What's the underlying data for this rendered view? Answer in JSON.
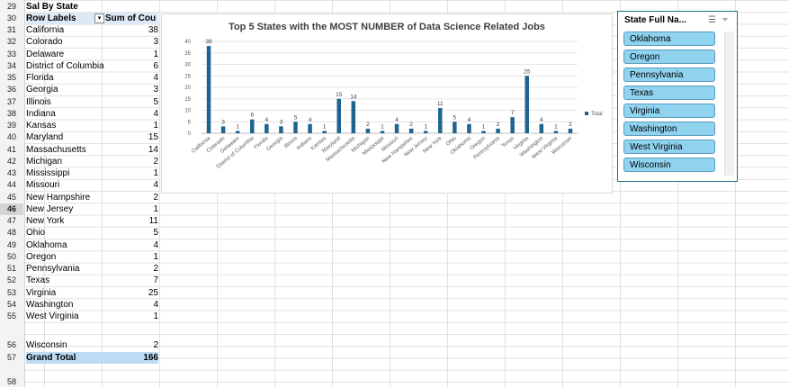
{
  "pivot": {
    "section_title": "Sal By State",
    "header": {
      "row_labels": "Row Labels",
      "sum_label": "Sum of Cou"
    },
    "rows": [
      {
        "state": "California",
        "count": "38"
      },
      {
        "state": "Colorado",
        "count": "3"
      },
      {
        "state": "Delaware",
        "count": "1"
      },
      {
        "state": "District of Columbia",
        "count": "6"
      },
      {
        "state": "Florida",
        "count": "4"
      },
      {
        "state": "Georgia",
        "count": "3"
      },
      {
        "state": "Illinois",
        "count": "5"
      },
      {
        "state": "Indiana",
        "count": "4"
      },
      {
        "state": "Kansas",
        "count": "1"
      },
      {
        "state": "Maryland",
        "count": "15"
      },
      {
        "state": "Massachusetts",
        "count": "14"
      },
      {
        "state": "Michigan",
        "count": "2"
      },
      {
        "state": "Mississippi",
        "count": "1"
      },
      {
        "state": "Missouri",
        "count": "4"
      },
      {
        "state": "New Hampshire",
        "count": "2"
      },
      {
        "state": "New Jersey",
        "count": "1"
      },
      {
        "state": "New York",
        "count": "11"
      },
      {
        "state": "Ohio",
        "count": "5"
      },
      {
        "state": "Oklahoma",
        "count": "4"
      },
      {
        "state": "Oregon",
        "count": "1"
      },
      {
        "state": "Pennsylvania",
        "count": "2"
      },
      {
        "state": "Texas",
        "count": "7"
      },
      {
        "state": "Virginia",
        "count": "25"
      },
      {
        "state": "Washington",
        "count": "4"
      },
      {
        "state": "West Virginia",
        "count": "1"
      }
    ],
    "last_row": {
      "state": "Wisconsin",
      "count": "2"
    },
    "grand_total": {
      "label": "Grand Total",
      "value": "166"
    },
    "row_numbers": [
      "29",
      "30",
      "31",
      "32",
      "33",
      "34",
      "35",
      "36",
      "37",
      "38",
      "39",
      "40",
      "41",
      "42",
      "43",
      "44",
      "45",
      "46",
      "47",
      "48",
      "49",
      "50",
      "51",
      "52",
      "53",
      "54",
      "55",
      "56",
      "57",
      "58"
    ],
    "selected_row": "46"
  },
  "chart_data": {
    "type": "bar",
    "title": "Top 5 States with the MOST NUMBER of Data Science Related Jobs",
    "categories": [
      "California",
      "Colorado",
      "Delaware",
      "District of Columbia",
      "Florida",
      "Georgia",
      "Illinois",
      "Indiana",
      "Kansas",
      "Maryland",
      "Massachusetts",
      "Michigan",
      "Mississippi",
      "Missouri",
      "New Hampshire",
      "New Jersey",
      "New York",
      "Ohio",
      "Oklahoma",
      "Oregon",
      "Pennsylvania",
      "Texas",
      "Virginia",
      "Washington",
      "West Virginia",
      "Wisconsin"
    ],
    "series": [
      {
        "name": "Total",
        "values": [
          38,
          3,
          1,
          6,
          4,
          3,
          5,
          4,
          1,
          15,
          14,
          2,
          1,
          4,
          2,
          1,
          11,
          5,
          4,
          1,
          2,
          7,
          25,
          4,
          1,
          2
        ]
      }
    ],
    "ylim": [
      0,
      40
    ],
    "yticks": [
      0,
      5,
      10,
      15,
      20,
      25,
      30,
      35,
      40
    ],
    "legend_position": "right",
    "bar_color": "#1f6391"
  },
  "slicer": {
    "title": "State Full Na...",
    "multiselect_icon": "multi-select-icon",
    "clear_filter_icon": "clear-filter-icon",
    "items": [
      "Oklahoma",
      "Oregon",
      "Pennsylvania",
      "Texas",
      "Virginia",
      "Washington",
      "West Virginia",
      "Wisconsin"
    ]
  }
}
